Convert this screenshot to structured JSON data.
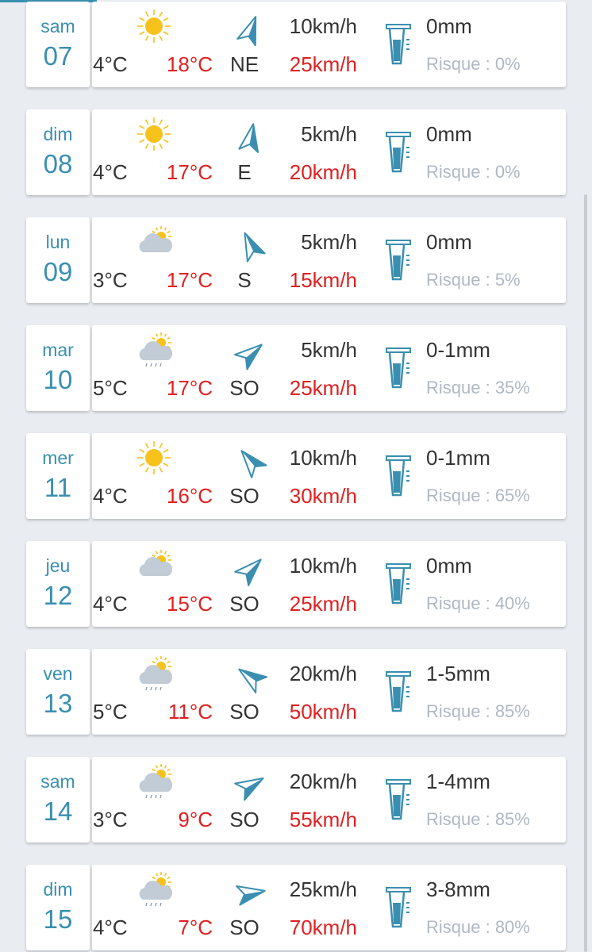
{
  "colors": {
    "accent": "#3a8fb0",
    "max": "#e02020",
    "text": "#333333",
    "muted": "#b0b8c4"
  },
  "days": [
    {
      "day": "sam",
      "date": "07",
      "icon": "sun-icon",
      "min": "4°C",
      "max": "18°C",
      "wind": "10km/h",
      "dir": "NE",
      "gust": "25km/h",
      "arrow_deg": 20,
      "rain": "0mm",
      "risk": "Risque : 0%"
    },
    {
      "day": "dim",
      "date": "08",
      "icon": "sun-icon",
      "min": "4°C",
      "max": "17°C",
      "wind": "5km/h",
      "dir": "E",
      "gust": "20km/h",
      "arrow_deg": 10,
      "rain": "0mm",
      "risk": "Risque : 0%"
    },
    {
      "day": "lun",
      "date": "09",
      "icon": "cloud-sun-icon",
      "min": "3°C",
      "max": "17°C",
      "wind": "5km/h",
      "dir": "S",
      "gust": "15km/h",
      "arrow_deg": -25,
      "rain": "0mm",
      "risk": "Risque : 5%"
    },
    {
      "day": "mar",
      "date": "10",
      "icon": "cloud-sun-rain-icon",
      "min": "5°C",
      "max": "17°C",
      "wind": "5km/h",
      "dir": "SO",
      "gust": "25km/h",
      "arrow_deg": 50,
      "rain": "0-1mm",
      "risk": "Risque : 35%"
    },
    {
      "day": "mer",
      "date": "11",
      "icon": "sun-icon",
      "min": "4°C",
      "max": "16°C",
      "wind": "10km/h",
      "dir": "SO",
      "gust": "30km/h",
      "arrow_deg": -40,
      "rain": "0-1mm",
      "risk": "Risque : 65%"
    },
    {
      "day": "jeu",
      "date": "12",
      "icon": "cloud-sun-icon",
      "min": "4°C",
      "max": "15°C",
      "wind": "10km/h",
      "dir": "SO",
      "gust": "25km/h",
      "arrow_deg": 45,
      "rain": "0mm",
      "risk": "Risque : 40%"
    },
    {
      "day": "ven",
      "date": "13",
      "icon": "cloud-sun-rain-icon",
      "min": "5°C",
      "max": "11°C",
      "wind": "20km/h",
      "dir": "SO",
      "gust": "50km/h",
      "arrow_deg": -55,
      "rain": "1-5mm",
      "risk": "Risque : 85%"
    },
    {
      "day": "sam",
      "date": "14",
      "icon": "cloud-sun-rain-icon",
      "min": "3°C",
      "max": "9°C",
      "wind": "20km/h",
      "dir": "SO",
      "gust": "55km/h",
      "arrow_deg": 60,
      "rain": "1-4mm",
      "risk": "Risque : 85%"
    },
    {
      "day": "dim",
      "date": "15",
      "icon": "cloud-sun-rain-icon",
      "min": "4°C",
      "max": "7°C",
      "wind": "25km/h",
      "dir": "SO",
      "gust": "70km/h",
      "arrow_deg": 80,
      "rain": "3-8mm",
      "risk": "Risque : 80%"
    }
  ]
}
